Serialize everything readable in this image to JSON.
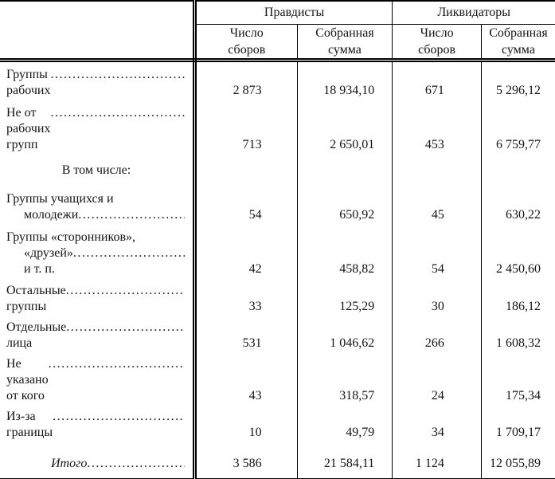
{
  "colors": {
    "background": "#ffffff",
    "text": "#141414",
    "rule": "#000000"
  },
  "header": {
    "group1": "Правдисты",
    "group2": "Ликвидаторы",
    "num_line1": "Число",
    "num_line2": "сборов",
    "sum_line1": "Собранная",
    "sum_line2": "сумма"
  },
  "rows": [
    {
      "label": "Группы рабочих",
      "p_num": "2 873",
      "p_sum": "18 934,10",
      "l_num": "671",
      "l_sum": "5 296,12"
    },
    {
      "label": "Не от рабочих групп",
      "p_num": "713",
      "p_sum": "2 650,01",
      "l_num": "453",
      "l_sum": "6 759,77"
    },
    {
      "section": "В том числе:"
    },
    {
      "label1": "Группы учащихся и",
      "label2": "молодежи",
      "p_num": "54",
      "p_sum": "650,92",
      "l_num": "45",
      "l_sum": "630,22"
    },
    {
      "label1": "Группы «сторонников»,",
      "label2": "«друзей» и т. п. ",
      "p_num": "42",
      "p_sum": "458,82",
      "l_num": "54",
      "l_sum": "2 450,60"
    },
    {
      "label": "Остальные группы",
      "p_num": "33",
      "p_sum": "125,29",
      "l_num": "30",
      "l_sum": "186,12"
    },
    {
      "label": "Отдельные лица",
      "p_num": "531",
      "p_sum": "1 046,62",
      "l_num": "266",
      "l_sum": "1 608,32"
    },
    {
      "label": "Не указано от кого",
      "p_num": "43",
      "p_sum": "318,57",
      "l_num": "24",
      "l_sum": "175,34"
    },
    {
      "label": "Из-за границы ",
      "p_num": "10",
      "p_sum": "49,79",
      "l_num": "34",
      "l_sum": "1 709,17"
    },
    {
      "total": "Итого",
      "p_num": "3 586",
      "p_sum": "21 584,11",
      "l_num": "1 124",
      "l_sum": "12 055,89"
    }
  ]
}
